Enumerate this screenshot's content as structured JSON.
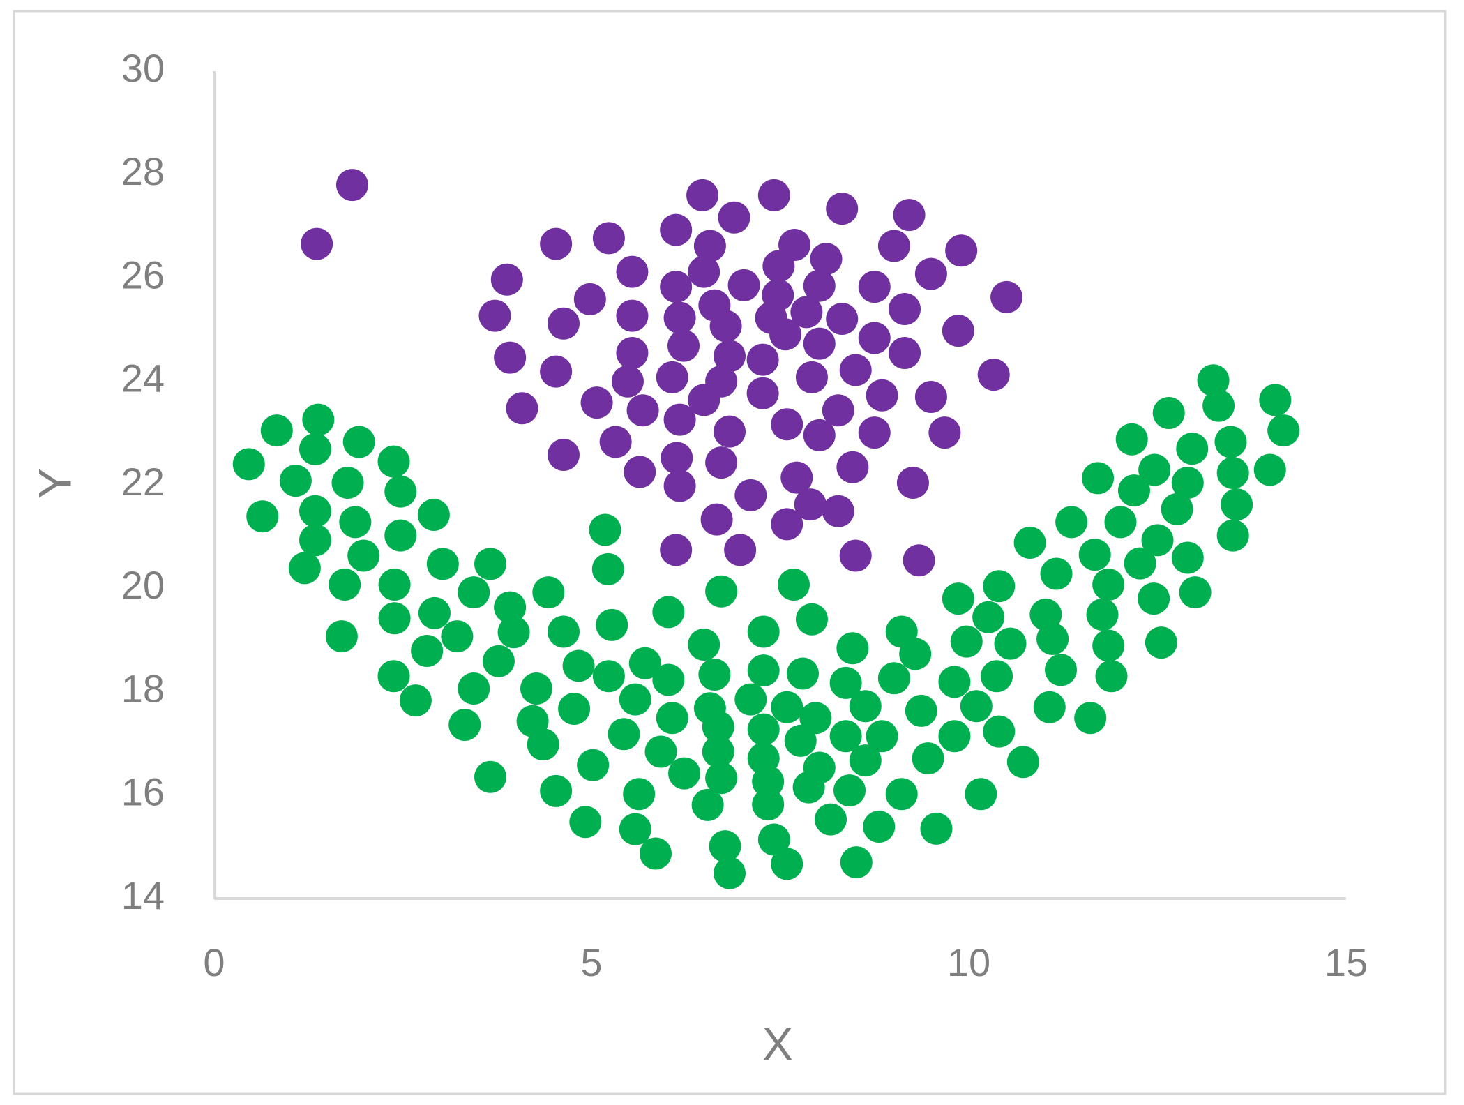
{
  "chart_data": {
    "type": "scatter",
    "x_label": "X",
    "y_label": "Y",
    "xlim": [
      0,
      15
    ],
    "xticks": [
      0,
      5,
      10,
      15
    ],
    "ylim": [
      14,
      30
    ],
    "yticks": [
      14,
      16,
      18,
      20,
      22,
      24,
      26,
      28,
      30
    ],
    "grid": false,
    "series": [
      {
        "color": "#7030a0",
        "x": [
          1.83,
          1.36,
          3.88,
          3.72,
          3.92,
          4.08,
          4.53,
          4.53,
          4.63,
          4.63,
          4.98,
          5.07,
          5.23,
          5.32,
          5.54,
          5.54,
          5.54,
          5.48,
          5.68,
          5.64,
          6.12,
          6.12,
          6.17,
          6.22,
          6.07,
          6.17,
          6.13,
          6.17,
          6.12,
          6.47,
          6.57,
          6.49,
          6.63,
          6.78,
          6.83,
          6.72,
          6.49,
          6.83,
          6.72,
          6.66,
          6.89,
          7.02,
          7.11,
          6.97,
          7.42,
          7.48,
          7.47,
          7.38,
          7.27,
          7.27,
          7.57,
          7.69,
          7.59,
          7.72,
          7.59,
          7.9,
          8.02,
          7.85,
          8.02,
          7.92,
          8.02,
          8.11,
          8.32,
          8.32,
          8.27,
          8.27,
          8.5,
          8.46,
          8.5,
          8.75,
          8.75,
          8.85,
          8.75,
          9.01,
          9.21,
          9.15,
          9.15,
          9.26,
          9.34,
          9.5,
          9.5,
          9.68,
          9.9,
          9.86,
          10.33,
          10.5
        ],
        "values": [
          27.8,
          26.66,
          25.97,
          25.27,
          24.46,
          23.48,
          26.66,
          24.19,
          25.12,
          22.58,
          25.59,
          23.59,
          26.77,
          22.83,
          26.12,
          25.27,
          24.55,
          24.0,
          23.44,
          22.25,
          26.93,
          25.83,
          25.23,
          24.69,
          24.08,
          23.26,
          22.52,
          21.98,
          20.74,
          27.6,
          26.62,
          26.12,
          25.47,
          25.07,
          24.49,
          24.0,
          23.64,
          23.03,
          22.43,
          21.33,
          27.17,
          25.86,
          21.8,
          20.74,
          27.6,
          26.23,
          25.67,
          25.23,
          24.42,
          23.77,
          24.91,
          26.64,
          23.17,
          22.14,
          21.24,
          21.62,
          25.85,
          25.34,
          24.73,
          24.08,
          22.96,
          26.37,
          27.34,
          25.21,
          23.44,
          21.49,
          24.22,
          22.34,
          20.63,
          25.83,
          24.84,
          23.73,
          23.01,
          26.62,
          27.22,
          25.4,
          24.55,
          22.04,
          20.54,
          26.08,
          23.7,
          23.01,
          26.53,
          24.98,
          24.13,
          25.63
        ]
      },
      {
        "color": "#00b050",
        "x": [
          0.46,
          0.64,
          0.83,
          1.08,
          1.2,
          1.34,
          1.38,
          1.34,
          1.34,
          1.69,
          1.73,
          1.77,
          1.87,
          1.92,
          1.98,
          2.38,
          2.47,
          2.47,
          2.39,
          2.39,
          2.38,
          2.67,
          2.82,
          2.91,
          2.92,
          3.03,
          3.22,
          3.32,
          3.44,
          3.44,
          3.66,
          3.66,
          3.77,
          3.92,
          3.97,
          4.27,
          4.22,
          4.36,
          4.43,
          4.53,
          4.63,
          4.77,
          4.83,
          4.92,
          5.02,
          5.18,
          5.22,
          5.27,
          5.23,
          5.43,
          5.58,
          5.58,
          5.63,
          5.71,
          5.85,
          5.92,
          6.02,
          6.02,
          6.07,
          6.23,
          6.49,
          6.54,
          6.57,
          6.63,
          6.68,
          6.68,
          6.72,
          6.72,
          6.77,
          6.83,
          7.11,
          7.28,
          7.28,
          7.28,
          7.28,
          7.34,
          7.34,
          7.42,
          7.59,
          7.59,
          7.68,
          7.8,
          7.77,
          7.92,
          7.88,
          7.97,
          8.02,
          8.17,
          8.37,
          8.37,
          8.42,
          8.46,
          8.51,
          8.63,
          8.63,
          8.81,
          8.85,
          9.01,
          9.11,
          9.11,
          9.29,
          9.37,
          9.46,
          9.57,
          9.81,
          9.81,
          9.86,
          9.97,
          10.1,
          10.16,
          10.26,
          10.37,
          10.4,
          10.4,
          10.55,
          10.72,
          10.81,
          11.02,
          11.07,
          11.11,
          11.16,
          11.22,
          11.36,
          11.61,
          11.67,
          11.71,
          11.77,
          11.85,
          11.85,
          11.89,
          12.01,
          12.16,
          12.19,
          12.27,
          12.45,
          12.46,
          12.5,
          12.55,
          12.65,
          12.76,
          12.9,
          12.9,
          12.96,
          13.0,
          13.24,
          13.31,
          13.47,
          13.5,
          13.55,
          13.5,
          13.99,
          14.06,
          14.17
        ],
        "values": [
          22.4,
          21.39,
          23.05,
          22.08,
          20.39,
          22.69,
          23.26,
          21.49,
          20.93,
          19.07,
          20.07,
          22.04,
          21.28,
          22.83,
          20.63,
          22.45,
          21.87,
          21.02,
          20.07,
          19.42,
          18.3,
          17.83,
          18.79,
          21.42,
          19.52,
          20.47,
          19.07,
          17.36,
          18.06,
          19.92,
          16.35,
          20.47,
          18.59,
          19.63,
          19.15,
          18.06,
          17.43,
          16.98,
          19.92,
          16.08,
          19.16,
          17.67,
          18.5,
          15.48,
          16.58,
          21.13,
          20.37,
          19.29,
          18.3,
          17.18,
          15.34,
          17.85,
          16.02,
          18.55,
          14.87,
          16.84,
          19.54,
          18.23,
          17.49,
          16.42,
          18.91,
          15.81,
          17.68,
          18.33,
          17.32,
          16.84,
          19.94,
          16.33,
          15.01,
          14.49,
          17.85,
          19.16,
          18.41,
          17.27,
          16.71,
          16.26,
          15.82,
          15.14,
          14.67,
          17.7,
          20.07,
          18.35,
          17.05,
          19.4,
          16.15,
          17.49,
          16.53,
          15.53,
          18.17,
          17.14,
          16.09,
          18.84,
          14.7,
          17.72,
          16.67,
          15.39,
          17.14,
          18.26,
          19.16,
          16.02,
          18.73,
          17.63,
          16.71,
          15.35,
          18.19,
          17.14,
          19.8,
          18.97,
          17.72,
          16.02,
          19.44,
          18.3,
          20.04,
          17.23,
          18.93,
          16.64,
          20.88,
          19.49,
          17.7,
          19.02,
          20.28,
          18.42,
          21.28,
          17.49,
          20.65,
          22.13,
          19.49,
          20.07,
          18.89,
          18.3,
          21.28,
          22.88,
          21.89,
          20.48,
          19.8,
          22.29,
          20.93,
          18.95,
          23.39,
          21.53,
          20.59,
          22.04,
          22.7,
          19.92,
          24.02,
          23.53,
          22.83,
          22.23,
          21.62,
          21.02,
          22.29,
          23.64,
          23.05
        ]
      }
    ]
  }
}
